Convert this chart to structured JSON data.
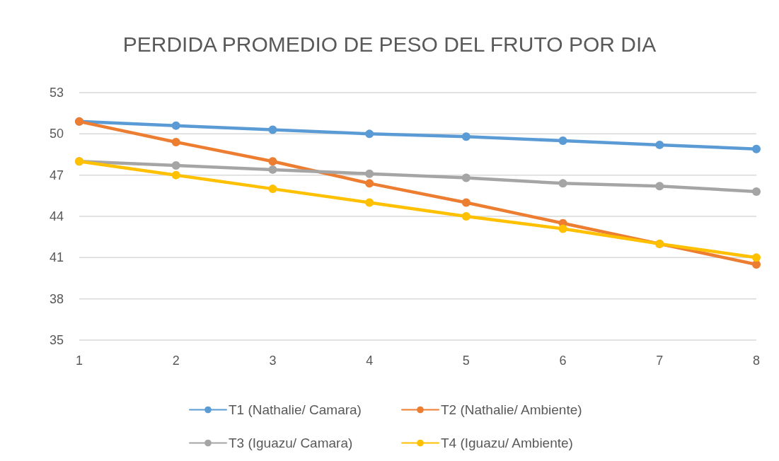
{
  "chart_data": {
    "type": "line",
    "title": "PERDIDA PROMEDIO DE PESO DEL FRUTO POR DIA",
    "categories": [
      "1",
      "2",
      "3",
      "4",
      "5",
      "6",
      "7",
      "8"
    ],
    "series": [
      {
        "name": "T1 (Nathalie/ Camara)",
        "color": "#5b9bd5",
        "values": [
          50.9,
          50.6,
          50.3,
          50.0,
          49.8,
          49.5,
          49.2,
          48.9
        ]
      },
      {
        "name": "T2 (Nathalie/ Ambiente)",
        "color": "#ed7d31",
        "values": [
          50.9,
          49.4,
          48.0,
          46.4,
          45.0,
          43.5,
          42.0,
          40.5
        ]
      },
      {
        "name": "T3 (Iguazu/ Camara)",
        "color": "#a5a5a5",
        "values": [
          48.0,
          47.7,
          47.4,
          47.1,
          46.8,
          46.4,
          46.2,
          45.8
        ]
      },
      {
        "name": "T4 (Iguazu/ Ambiente)",
        "color": "#ffc000",
        "values": [
          48.0,
          47.0,
          46.0,
          45.0,
          44.0,
          43.1,
          42.0,
          41.0
        ]
      }
    ],
    "ylim": [
      35,
      53
    ],
    "yticks": [
      35,
      38,
      41,
      44,
      47,
      50,
      53
    ],
    "grid": "y",
    "legend": "bottom",
    "marker": "circle",
    "line_style": "solid"
  }
}
